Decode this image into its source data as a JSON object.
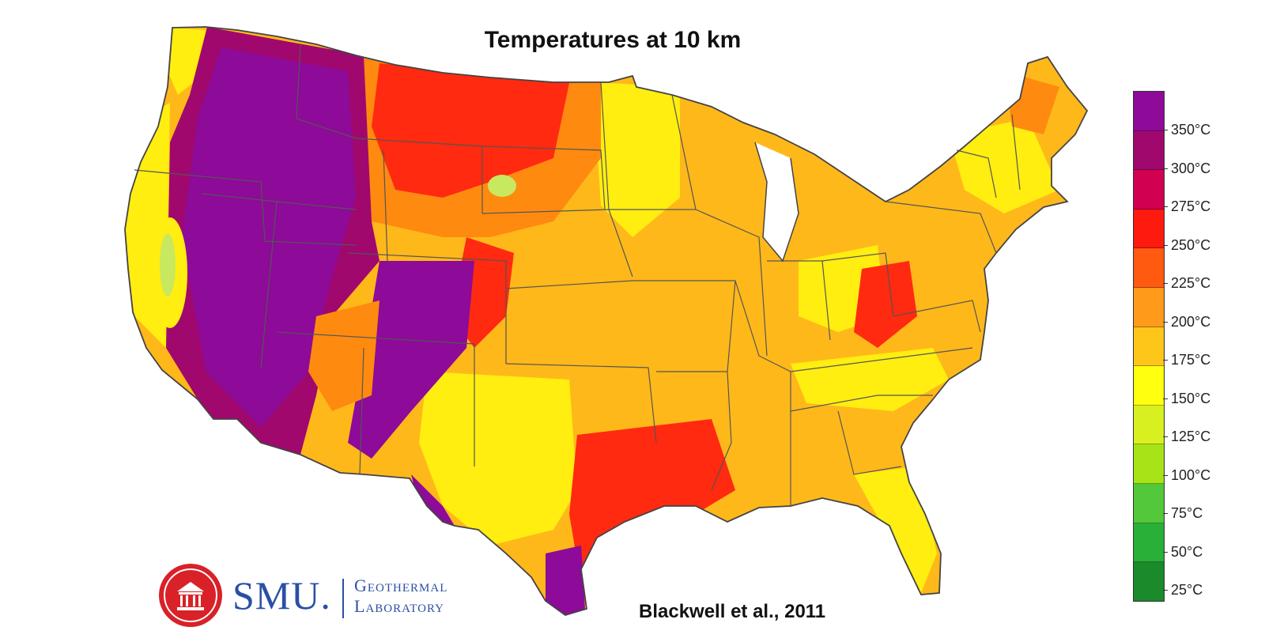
{
  "title": "Temperatures at 10 km",
  "citation": "Blackwell et al., 2011",
  "logo": {
    "name": "SMU.",
    "line1": "Geothermal",
    "line2": "Laboratory",
    "seal_color": "#d92128",
    "text_color": "#2a4fa6"
  },
  "legend": {
    "labels": [
      "350°C",
      "300°C",
      "275°C",
      "250°C",
      "225°C",
      "200°C",
      "175°C",
      "150°C",
      "125°C",
      "100°C",
      "75°C",
      "50°C",
      "25°C"
    ],
    "swatches": [
      "#8e0a98",
      "#a0086e",
      "#d20050",
      "#ff1a10",
      "#ff5a10",
      "#ff9a1a",
      "#ffc61a",
      "#ffff10",
      "#d9f020",
      "#a6e418",
      "#52c83a",
      "#28b038",
      "#1a8a2a"
    ]
  },
  "colors": {
    "purple": "#8e0a98",
    "magenta": "#a0086e",
    "red": "#ff2a10",
    "orange": "#ff8a10",
    "light_orange": "#ffb81a",
    "yellow": "#ffee10",
    "green": "#c8e860",
    "border": "#555555"
  }
}
